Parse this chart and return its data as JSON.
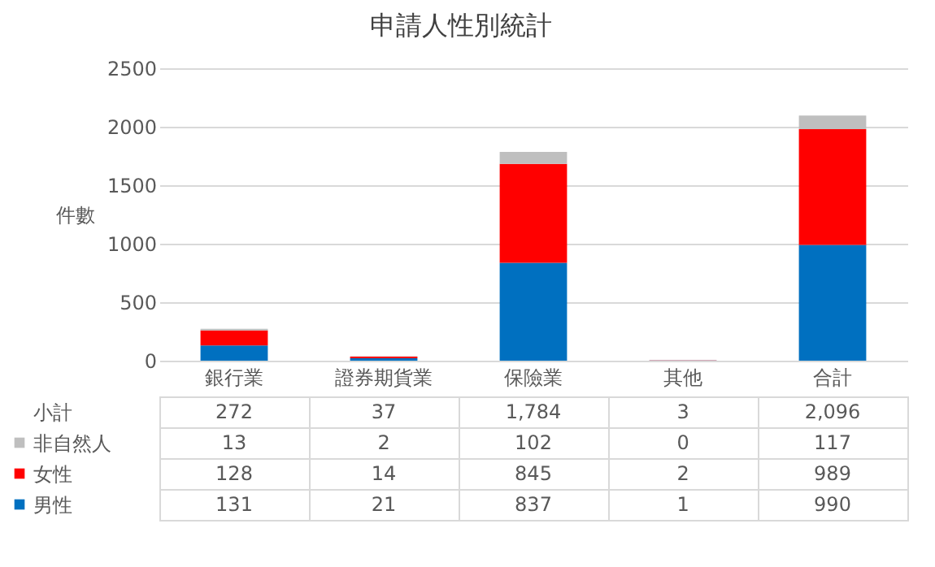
{
  "chart_data": {
    "type": "bar",
    "title": "申請人性別統計",
    "ylabel": "件數",
    "categories": [
      "銀行業",
      "證券期貨業",
      "保險業",
      "其他",
      "合計"
    ],
    "series": [
      {
        "name": "男性",
        "color": "#0070c0",
        "values": [
          131,
          21,
          837,
          1,
          990
        ]
      },
      {
        "name": "女性",
        "color": "#ff0000",
        "values": [
          128,
          14,
          845,
          2,
          989
        ]
      },
      {
        "name": "非自然人",
        "color": "#bfbfbf",
        "values": [
          13,
          2,
          102,
          0,
          117
        ]
      }
    ],
    "stacked": true,
    "ylim": [
      0,
      2500
    ],
    "yticks": [
      0,
      500,
      1000,
      1500,
      2000,
      2500
    ],
    "grid": "y",
    "legend": "bottom",
    "data_labels": true,
    "totals": [
      "272",
      "37",
      "1,784",
      "3",
      "2,096"
    ],
    "annotations": [
      "小計"
    ]
  }
}
